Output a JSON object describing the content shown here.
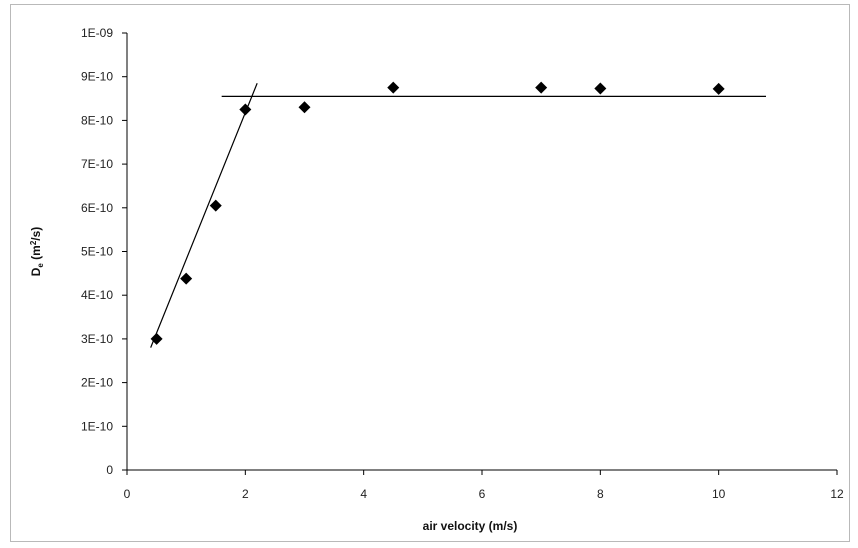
{
  "chart_data": {
    "type": "scatter",
    "xlabel": "air velocity (m/s)",
    "ylabel": {
      "main": "D",
      "sub": "e",
      "unit_pre": " (m",
      "sup": "2",
      "unit_post": "/s)"
    },
    "xlim": [
      0,
      12
    ],
    "ylim": [
      0,
      1e-09
    ],
    "xticks": [
      0,
      2,
      4,
      6,
      8,
      10,
      12
    ],
    "xtick_labels": [
      "0",
      "2",
      "4",
      "6",
      "8",
      "10",
      "12"
    ],
    "yticks": [
      0,
      1e-10,
      2e-10,
      3e-10,
      4e-10,
      5e-10,
      6e-10,
      7e-10,
      8e-10,
      9e-10,
      1e-09
    ],
    "ytick_labels": [
      "0",
      "1E-10",
      "2E-10",
      "3E-10",
      "4E-10",
      "5E-10",
      "6E-10",
      "7E-10",
      "8E-10",
      "9E-10",
      "1E-09"
    ],
    "grid": false,
    "legend": "none",
    "marker": "diamond",
    "marker_color": "#000000",
    "series": [
      {
        "x": [
          0.5,
          1.0,
          1.5,
          2.0,
          3.0,
          4.5,
          7.0,
          8.0,
          10.0
        ],
        "y": [
          3e-10,
          4.38e-10,
          6.05e-10,
          8.25e-10,
          8.3e-10,
          8.75e-10,
          8.75e-10,
          8.73e-10,
          8.72e-10
        ]
      }
    ],
    "trend_lines": [
      {
        "x": [
          0.4,
          2.2
        ],
        "y": [
          2.8e-10,
          8.85e-10
        ]
      },
      {
        "x": [
          1.6,
          10.8
        ],
        "y": [
          8.55e-10,
          8.55e-10
        ]
      }
    ]
  }
}
